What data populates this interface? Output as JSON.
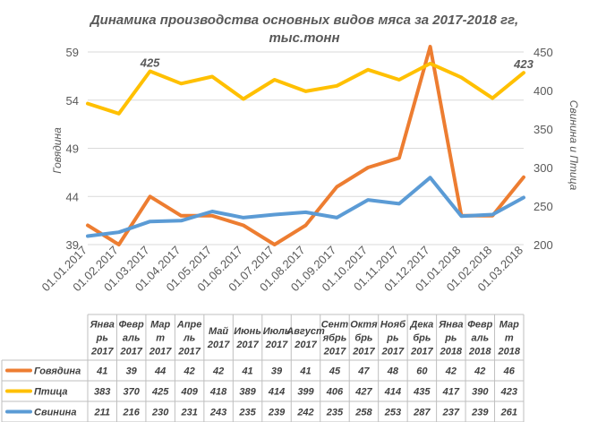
{
  "chart_data": {
    "type": "line",
    "title": "Динамика производства  основных видов мяса за 2017-2018 гг,",
    "subtitle": "тыс.тонн",
    "ylabel_left": "Говядина",
    "ylabel_right": "Свинина и Птица",
    "ylim_left": [
      39,
      59
    ],
    "yticks_left": [
      "39",
      "44",
      "49",
      "54",
      "59"
    ],
    "ylim_right": [
      200,
      450
    ],
    "yticks_right": [
      "200",
      "250",
      "300",
      "350",
      "400",
      "450"
    ],
    "x": [
      "01.01.2017",
      "01.02.2017",
      "01.03.2017",
      "01.04.2017",
      "01.05.2017",
      "01.06.2017",
      "01.07.2017",
      "01.08.2017",
      "01.09.2017",
      "01.10.2017",
      "01.11.2017",
      "01.12.2017",
      "01.01.2018",
      "01.02.2018",
      "01.03.2018"
    ],
    "table_headers": [
      [
        "Янва",
        "рь",
        "2017"
      ],
      [
        "Февр",
        "аль",
        "2017"
      ],
      [
        "Мар",
        "т",
        "2017"
      ],
      [
        "Апре",
        "ль",
        "2017"
      ],
      [
        "Май",
        "2017"
      ],
      [
        "Июнь",
        "2017"
      ],
      [
        "Июль",
        "2017"
      ],
      [
        "Август",
        "2017"
      ],
      [
        "Сент",
        "ябрь",
        "2017"
      ],
      [
        "Октя",
        "брь",
        "2017"
      ],
      [
        "Нояб",
        "рь",
        "2017"
      ],
      [
        "Дека",
        "брь",
        "2017"
      ],
      [
        "Янва",
        "рь",
        "2018"
      ],
      [
        "Февр",
        "аль",
        "2018"
      ],
      [
        "Мар",
        "т",
        "2018"
      ]
    ],
    "series": [
      {
        "name": "Говядина",
        "axis": "left",
        "color": "#ED7D31",
        "values": [
          41,
          39,
          44,
          42,
          42,
          41,
          39,
          41,
          45,
          47,
          48,
          60,
          42,
          42,
          46
        ]
      },
      {
        "name": "Птица",
        "axis": "right",
        "color": "#FFC000",
        "values": [
          383,
          370,
          425,
          409,
          418,
          389,
          414,
          399,
          406,
          427,
          414,
          435,
          417,
          390,
          423
        ]
      },
      {
        "name": "Свинина",
        "axis": "right",
        "color": "#5B9BD5",
        "values": [
          211,
          216,
          230,
          231,
          243,
          235,
          239,
          242,
          235,
          258,
          253,
          287,
          237,
          239,
          261
        ]
      }
    ],
    "annotations": [
      {
        "series": "Птица",
        "index": 2,
        "text": "425"
      },
      {
        "series": "Птица",
        "index": 14,
        "text": "423"
      }
    ],
    "grid": true
  }
}
